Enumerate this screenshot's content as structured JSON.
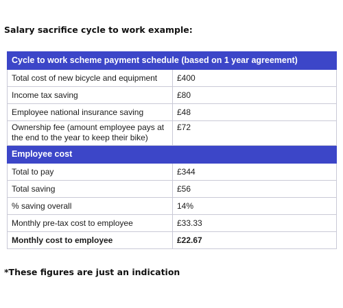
{
  "heading": "Salary sacrifice cycle to work example:",
  "table": {
    "header": "Cycle to work scheme payment schedule (based on 1 year agreement)",
    "rows": [
      {
        "label": "Total cost of new bicycle and equipment",
        "value": "£400"
      },
      {
        "label": "Income tax saving",
        "value": "£80"
      },
      {
        "label": "Employee national insurance saving",
        "value": "£48"
      },
      {
        "label": "Ownership fee (amount employee pays at the end to the year to keep their bike)",
        "value": "£72"
      }
    ],
    "section_header": "Employee cost",
    "cost_rows": [
      {
        "label": "Total to pay",
        "value": "£344"
      },
      {
        "label": "Total saving",
        "value": "£56"
      },
      {
        "label": "% saving overall",
        "value": "14%"
      },
      {
        "label": "Monthly pre-tax cost to employee",
        "value": "£33.33"
      },
      {
        "label": "Monthly cost to employee",
        "value": "£22.67"
      }
    ]
  },
  "footnote": "*These figures are just an indication",
  "colors": {
    "header_bg": "#3c46c8",
    "header_text": "#ffffff",
    "border": "#c9c9d6"
  }
}
